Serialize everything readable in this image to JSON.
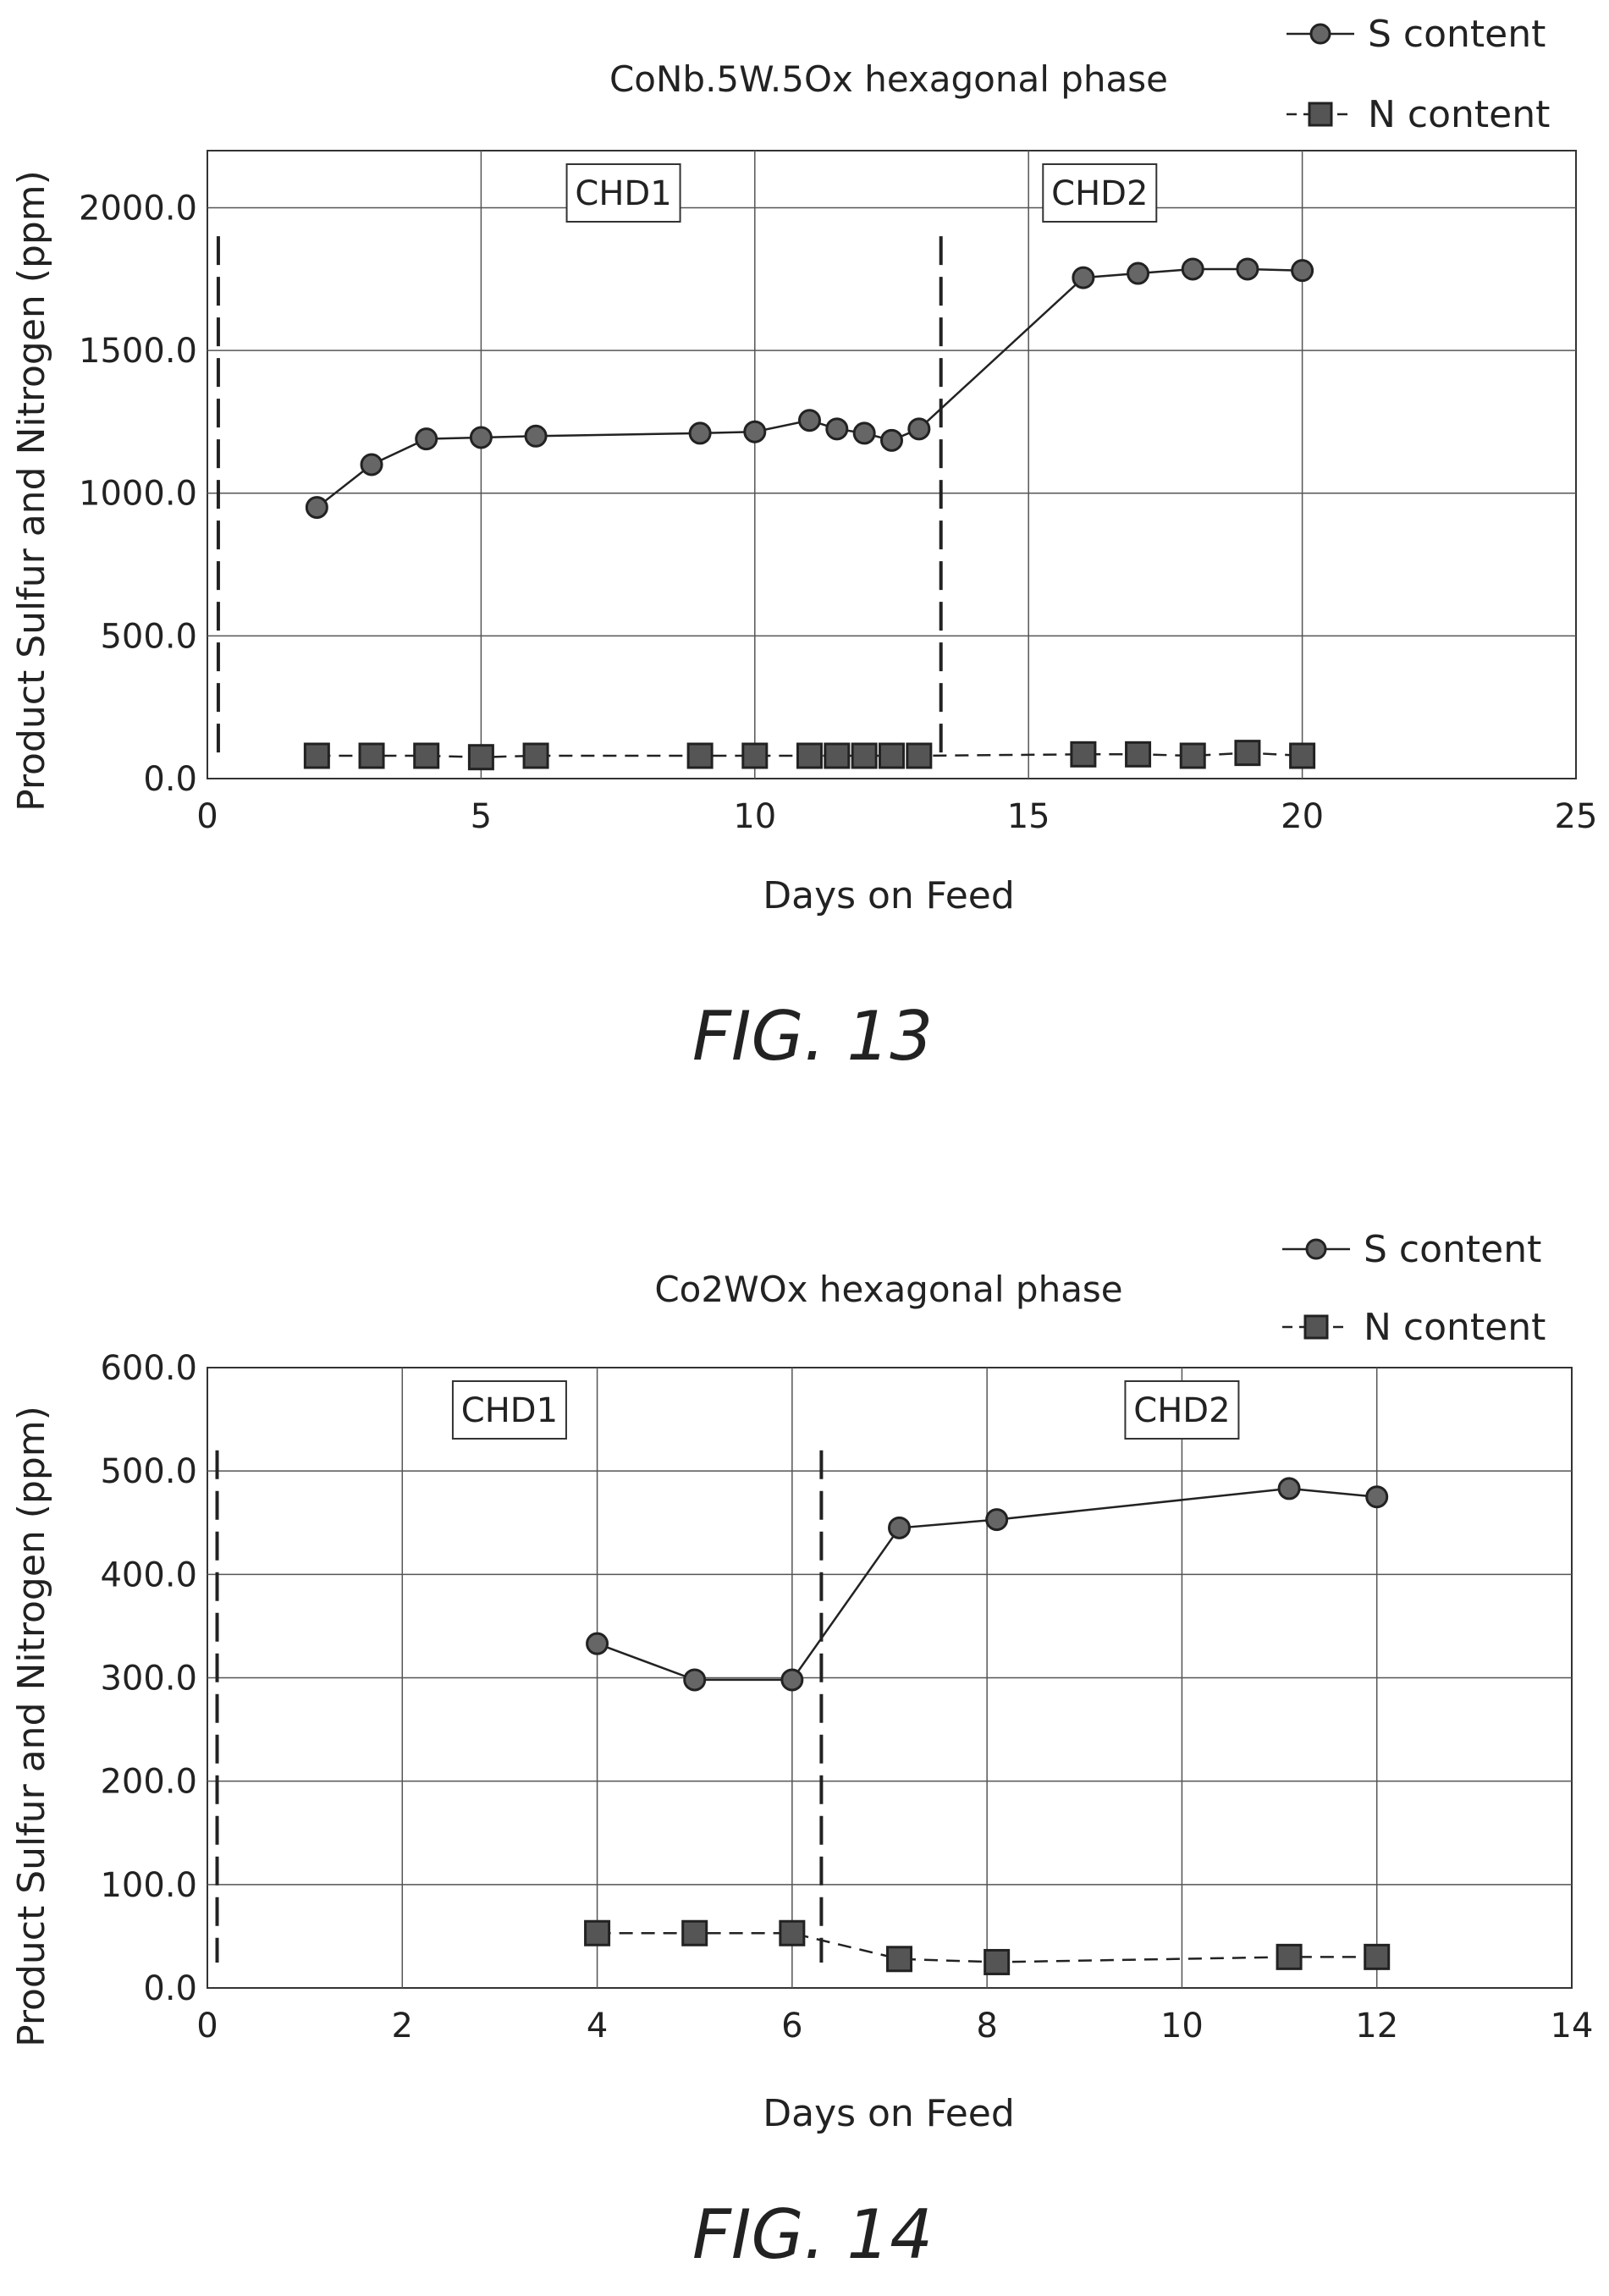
{
  "figures": [
    {
      "caption": "FIG. 13",
      "region_labels": [
        "CHD1",
        "CHD2"
      ],
      "chart_data": {
        "type": "line",
        "title": "CoNb.5W.5Ox hexagonal phase",
        "xlabel": "Days on Feed",
        "ylabel": "Product Sulfur and Nitrogen (ppm)",
        "xlim": [
          0,
          25
        ],
        "ylim": [
          0,
          2200
        ],
        "x_ticks": [
          0,
          5,
          10,
          15,
          20,
          25
        ],
        "x_tick_labels": [
          "0",
          "5",
          "10",
          "15",
          "20",
          "25"
        ],
        "y_ticks": [
          0,
          500,
          1000,
          1500,
          2000
        ],
        "y_tick_labels": [
          "0.0",
          "500.0",
          "1000.0",
          "1500.0",
          "2000.0"
        ],
        "grid": true,
        "legend_position": "top-right",
        "divider_x": [
          0.2,
          13.4
        ],
        "series": [
          {
            "name": "S content",
            "marker": "circle",
            "line_style": "solid",
            "x": [
              2,
              3,
              4,
              5,
              6,
              9,
              10,
              11,
              11.5,
              12,
              12.5,
              13,
              16,
              17,
              18,
              19,
              20
            ],
            "values": [
              950,
              1100,
              1190,
              1195,
              1200,
              1210,
              1215,
              1255,
              1225,
              1210,
              1185,
              1225,
              1755,
              1770,
              1785,
              1785,
              1780
            ]
          },
          {
            "name": "N content",
            "marker": "square",
            "line_style": "dashed",
            "x": [
              2,
              3,
              4,
              5,
              6,
              9,
              10,
              11,
              11.5,
              12,
              12.5,
              13,
              16,
              17,
              18,
              19,
              20
            ],
            "values": [
              80,
              80,
              80,
              75,
              80,
              80,
              80,
              80,
              80,
              80,
              80,
              80,
              85,
              85,
              80,
              90,
              80
            ]
          }
        ]
      }
    },
    {
      "caption": "FIG. 14",
      "region_labels": [
        "CHD1",
        "CHD2"
      ],
      "chart_data": {
        "type": "line",
        "title": "Co2WOx hexagonal phase",
        "xlabel": "Days on Feed",
        "ylabel": "Product Sulfur and Nitrogen (ppm)",
        "xlim": [
          0,
          14
        ],
        "ylim": [
          0,
          600
        ],
        "x_ticks": [
          0,
          2,
          4,
          6,
          8,
          10,
          12,
          14
        ],
        "x_tick_labels": [
          "0",
          "2",
          "4",
          "6",
          "8",
          "10",
          "12",
          "14"
        ],
        "y_ticks": [
          0,
          100,
          200,
          300,
          400,
          500,
          600
        ],
        "y_tick_labels": [
          "0.0",
          "100.0",
          "200.0",
          "300.0",
          "400.0",
          "500.0",
          "600.0"
        ],
        "grid": true,
        "legend_position": "top-right",
        "divider_x": [
          0.1,
          6.3
        ],
        "series": [
          {
            "name": "S content",
            "marker": "circle",
            "line_style": "solid",
            "x": [
              4,
              5,
              6,
              7.1,
              8.1,
              11.1,
              12
            ],
            "values": [
              333,
              298,
              298,
              445,
              453,
              483,
              475
            ]
          },
          {
            "name": "N content",
            "marker": "square",
            "line_style": "dashed",
            "x": [
              4,
              5,
              6,
              7.1,
              8.1,
              11.1,
              12
            ],
            "values": [
              53,
              53,
              53,
              28,
              25,
              30,
              30
            ]
          }
        ]
      }
    }
  ]
}
